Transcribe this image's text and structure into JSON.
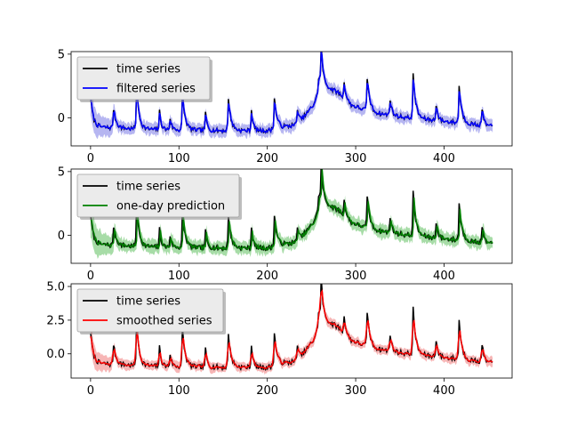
{
  "chart_data": [
    {
      "type": "line",
      "title": "",
      "xlabel": "",
      "ylabel": "",
      "xlim": [
        -22,
        477
      ],
      "ylim": [
        -2.2,
        5.2
      ],
      "xticks": [
        0,
        100,
        200,
        300,
        400
      ],
      "yticks": [
        0,
        5
      ],
      "xtick_labels": [
        "0",
        "100",
        "200",
        "300",
        "400"
      ],
      "ytick_labels": [
        "0",
        "5"
      ],
      "legend_position": "top-left",
      "legend": [
        "time series",
        "filtered series"
      ],
      "colors": {
        "observed": "#000000",
        "estimate": "#0000ff",
        "band": "#7a7ae6"
      },
      "band_halfwidth": 0.55,
      "band_decay": 0.9
    },
    {
      "type": "line",
      "title": "",
      "xlabel": "",
      "ylabel": "",
      "xlim": [
        -22,
        477
      ],
      "ylim": [
        -2.2,
        5.2
      ],
      "xticks": [
        0,
        100,
        200,
        300,
        400
      ],
      "yticks": [
        0,
        5
      ],
      "xtick_labels": [
        "0",
        "100",
        "200",
        "300",
        "400"
      ],
      "ytick_labels": [
        "0",
        "5"
      ],
      "legend_position": "top-left",
      "legend": [
        "time series",
        "one-day prediction"
      ],
      "colors": {
        "observed": "#000000",
        "estimate": "#008000",
        "band": "#5fbf5f"
      },
      "band_halfwidth": 0.6,
      "band_decay": 0.9
    },
    {
      "type": "line",
      "title": "",
      "xlabel": "",
      "ylabel": "",
      "xlim": [
        -22,
        477
      ],
      "ylim": [
        -1.8,
        5.2
      ],
      "xticks": [
        0,
        100,
        200,
        300,
        400
      ],
      "yticks": [
        0,
        2.5,
        5
      ],
      "xtick_labels": [
        "0",
        "100",
        "200",
        "300",
        "400"
      ],
      "ytick_labels": [
        "0.0",
        "2.5",
        "5.0"
      ],
      "legend_position": "top-left",
      "legend": [
        "time series",
        "smoothed series"
      ],
      "colors": {
        "observed": "#000000",
        "estimate": "#ff0000",
        "band": "#f07a7a"
      },
      "band_halfwidth": 0.4,
      "band_decay": 0.95
    }
  ],
  "series_model": {
    "x_start": 0,
    "x_end": 455,
    "baseline": [
      [
        0,
        -0.7
      ],
      [
        60,
        -0.9
      ],
      [
        150,
        -1.0
      ],
      [
        200,
        -1.0
      ],
      [
        235,
        -0.5
      ],
      [
        252,
        1.0
      ],
      [
        262,
        2.6
      ],
      [
        280,
        2.0
      ],
      [
        295,
        1.0
      ],
      [
        320,
        0.4
      ],
      [
        360,
        0.0
      ],
      [
        420,
        -0.4
      ],
      [
        455,
        -0.7
      ]
    ],
    "peaks": [
      {
        "x": 0,
        "height": 2.3,
        "width": 3
      },
      {
        "x": 26,
        "height": 1.5,
        "width": 3
      },
      {
        "x": 52,
        "height": 3.3,
        "width": 3
      },
      {
        "x": 78,
        "height": 1.4,
        "width": 2
      },
      {
        "x": 90,
        "height": 0.9,
        "width": 2
      },
      {
        "x": 104,
        "height": 2.8,
        "width": 3
      },
      {
        "x": 130,
        "height": 1.3,
        "width": 2
      },
      {
        "x": 156,
        "height": 2.5,
        "width": 3
      },
      {
        "x": 182,
        "height": 1.6,
        "width": 2
      },
      {
        "x": 208,
        "height": 2.4,
        "width": 3
      },
      {
        "x": 234,
        "height": 1.3,
        "width": 2
      },
      {
        "x": 258,
        "height": 1.2,
        "width": 3
      },
      {
        "x": 261,
        "height": 2.7,
        "width": 2
      },
      {
        "x": 287,
        "height": 1.3,
        "width": 2
      },
      {
        "x": 313,
        "height": 2.6,
        "width": 3
      },
      {
        "x": 339,
        "height": 1.3,
        "width": 2
      },
      {
        "x": 365,
        "height": 3.4,
        "width": 3
      },
      {
        "x": 391,
        "height": 1.3,
        "width": 2
      },
      {
        "x": 417,
        "height": 2.9,
        "width": 3
      },
      {
        "x": 443,
        "height": 1.4,
        "width": 2
      }
    ]
  }
}
